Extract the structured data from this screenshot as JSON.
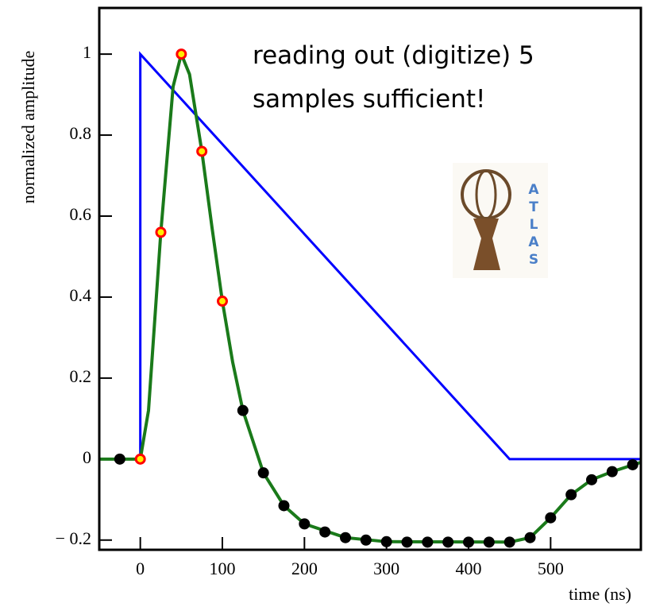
{
  "chart_data": {
    "type": "line",
    "annotation": [
      "reading out (digitize) 5",
      "samples sufficient!"
    ],
    "logo_letters": [
      "A",
      "T",
      "L",
      "A",
      "S"
    ],
    "xlabel": "time (ns)",
    "ylabel": "normalized amplitude",
    "xlim": [
      -50,
      610
    ],
    "ylim": [
      -0.224,
      1.114
    ],
    "xticks": [
      0,
      100,
      200,
      300,
      400,
      500
    ],
    "yticks": [
      {
        "value": -0.2,
        "label": "− 0.2"
      },
      0,
      0.2,
      0.4,
      0.6,
      0.8,
      1
    ],
    "series": [
      {
        "style": "line",
        "color": "#0000ff",
        "x": [
          -50,
          0,
          0,
          450,
          610
        ],
        "values": [
          0,
          0,
          1,
          0,
          0
        ]
      },
      {
        "style": "line",
        "color": "#1a7a1a",
        "x": [
          -50,
          0,
          10,
          25,
          40,
          50,
          60,
          75,
          87.5,
          100,
          112.5,
          125,
          150,
          175,
          200,
          250,
          300,
          450,
          475,
          500,
          525,
          550,
          575,
          610
        ],
        "values": [
          0,
          0,
          0.12,
          0.56,
          0.92,
          1.0,
          0.95,
          0.76,
          0.57,
          0.39,
          0.24,
          0.12,
          -0.034,
          -0.115,
          -0.16,
          -0.194,
          -0.204,
          -0.205,
          -0.194,
          -0.145,
          -0.088,
          -0.051,
          -0.031,
          -0.008
        ]
      },
      {
        "style": "points",
        "color": "#000000",
        "x": [
          -25,
          125,
          150,
          175,
          200,
          225,
          250,
          275,
          300,
          325,
          350,
          375,
          400,
          425,
          450,
          475,
          500,
          525,
          550,
          575,
          600
        ],
        "values": [
          0,
          0.12,
          -0.034,
          -0.115,
          -0.16,
          -0.18,
          -0.194,
          -0.2,
          -0.204,
          -0.205,
          -0.205,
          -0.205,
          -0.205,
          -0.205,
          -0.205,
          -0.194,
          -0.145,
          -0.088,
          -0.051,
          -0.031,
          -0.014
        ]
      },
      {
        "style": "points",
        "color": "#ff0000",
        "ring": "#ffee00",
        "x": [
          0,
          25,
          50,
          75,
          100
        ],
        "values": [
          0,
          0.56,
          1.0,
          0.76,
          0.39
        ]
      }
    ]
  }
}
